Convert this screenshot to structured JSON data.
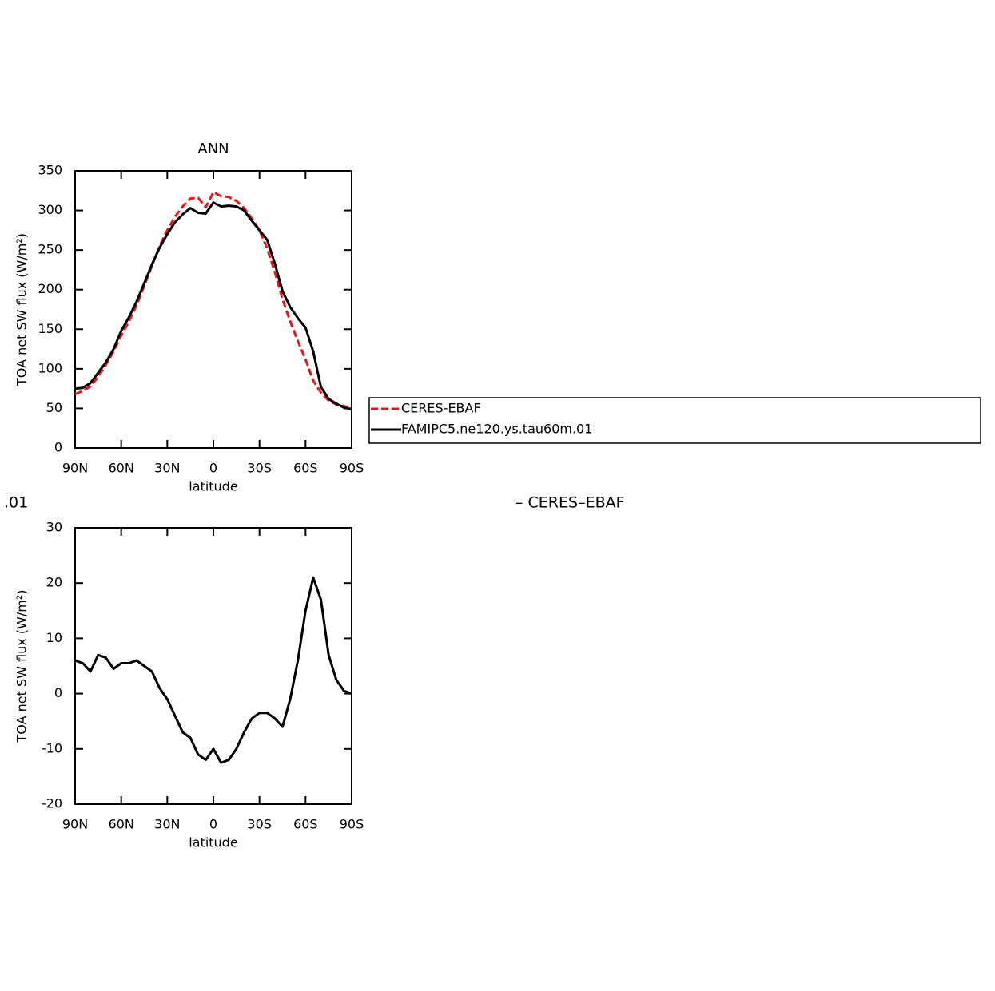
{
  "chart_data": [
    {
      "type": "line",
      "title": "ANN",
      "x_label": "latitude",
      "y_label": "TOA net SW flux (W/m²)",
      "x": [
        90,
        85,
        80,
        75,
        70,
        65,
        60,
        55,
        50,
        45,
        40,
        35,
        30,
        25,
        20,
        15,
        10,
        5,
        0,
        -5,
        -10,
        -15,
        -20,
        -25,
        -30,
        -35,
        -40,
        -45,
        -50,
        -55,
        -60,
        -65,
        -70,
        -75,
        -80,
        -85,
        -90
      ],
      "series": [
        {
          "name": "CERES-EBAF",
          "color": "#e8161a",
          "linestyle": "dashed",
          "values": [
            68,
            72,
            78,
            90,
            105,
            122,
            142,
            160,
            180,
            205,
            230,
            255,
            275,
            292,
            305,
            315,
            316,
            304,
            323,
            318,
            317,
            312,
            303,
            290,
            275,
            252,
            222,
            188,
            160,
            135,
            112,
            85,
            70,
            60,
            55,
            53,
            50
          ]
        },
        {
          "name": "FAMIPC5.ne120.ys.tau60m.01",
          "color": "#000000",
          "linestyle": "solid",
          "values": [
            75,
            76,
            82,
            95,
            108,
            125,
            148,
            165,
            185,
            208,
            232,
            253,
            270,
            285,
            295,
            303,
            297,
            296,
            310,
            305,
            306,
            305,
            300,
            287,
            275,
            263,
            233,
            198,
            178,
            164,
            152,
            122,
            77,
            62,
            56,
            51,
            49
          ]
        }
      ],
      "xlim": [
        90,
        -90
      ],
      "xticks": [
        {
          "value": 90,
          "label": "90N"
        },
        {
          "value": 60,
          "label": "60N"
        },
        {
          "value": 30,
          "label": "30N"
        },
        0,
        {
          "value": -30,
          "label": "30S"
        },
        {
          "value": -60,
          "label": "60S"
        },
        {
          "value": -90,
          "label": "90S"
        }
      ],
      "ylim": [
        0,
        350
      ],
      "yticks": [
        0,
        50,
        100,
        150,
        200,
        250,
        300,
        350
      ],
      "legend": "right"
    },
    {
      "type": "line",
      "x_label": "latitude",
      "y_label": "TOA net SW flux (W/m²)",
      "annotations": [
        ".01",
        "– CERES–EBAF"
      ],
      "x": [
        90,
        85,
        80,
        75,
        70,
        65,
        60,
        55,
        50,
        45,
        40,
        35,
        30,
        25,
        20,
        15,
        10,
        5,
        0,
        -5,
        -10,
        -15,
        -20,
        -25,
        -30,
        -35,
        -40,
        -45,
        -50,
        -55,
        -60,
        -65,
        -70,
        -75,
        -80,
        -85,
        -90
      ],
      "color": "#000000",
      "values": [
        6,
        5.5,
        4,
        7,
        6.5,
        4.5,
        5.5,
        5.5,
        6,
        5,
        4,
        1,
        -1,
        -4,
        -7,
        -8,
        -11,
        -12,
        -10,
        -12.5,
        -12,
        -10,
        -7,
        -4.5,
        -3.5,
        -3.5,
        -4.5,
        -6,
        -1,
        6,
        15,
        21,
        17,
        7,
        2.5,
        0.5,
        0
      ],
      "xlim": [
        90,
        -90
      ],
      "xticks": [
        {
          "value": 90,
          "label": "90N"
        },
        {
          "value": 60,
          "label": "60N"
        },
        {
          "value": 30,
          "label": "30N"
        },
        0,
        {
          "value": -30,
          "label": "30S"
        },
        {
          "value": -60,
          "label": "60S"
        },
        {
          "value": -90,
          "label": "90S"
        }
      ],
      "ylim": [
        -20,
        30
      ],
      "yticks": [
        -20,
        -10,
        0,
        10,
        20,
        30
      ]
    }
  ]
}
